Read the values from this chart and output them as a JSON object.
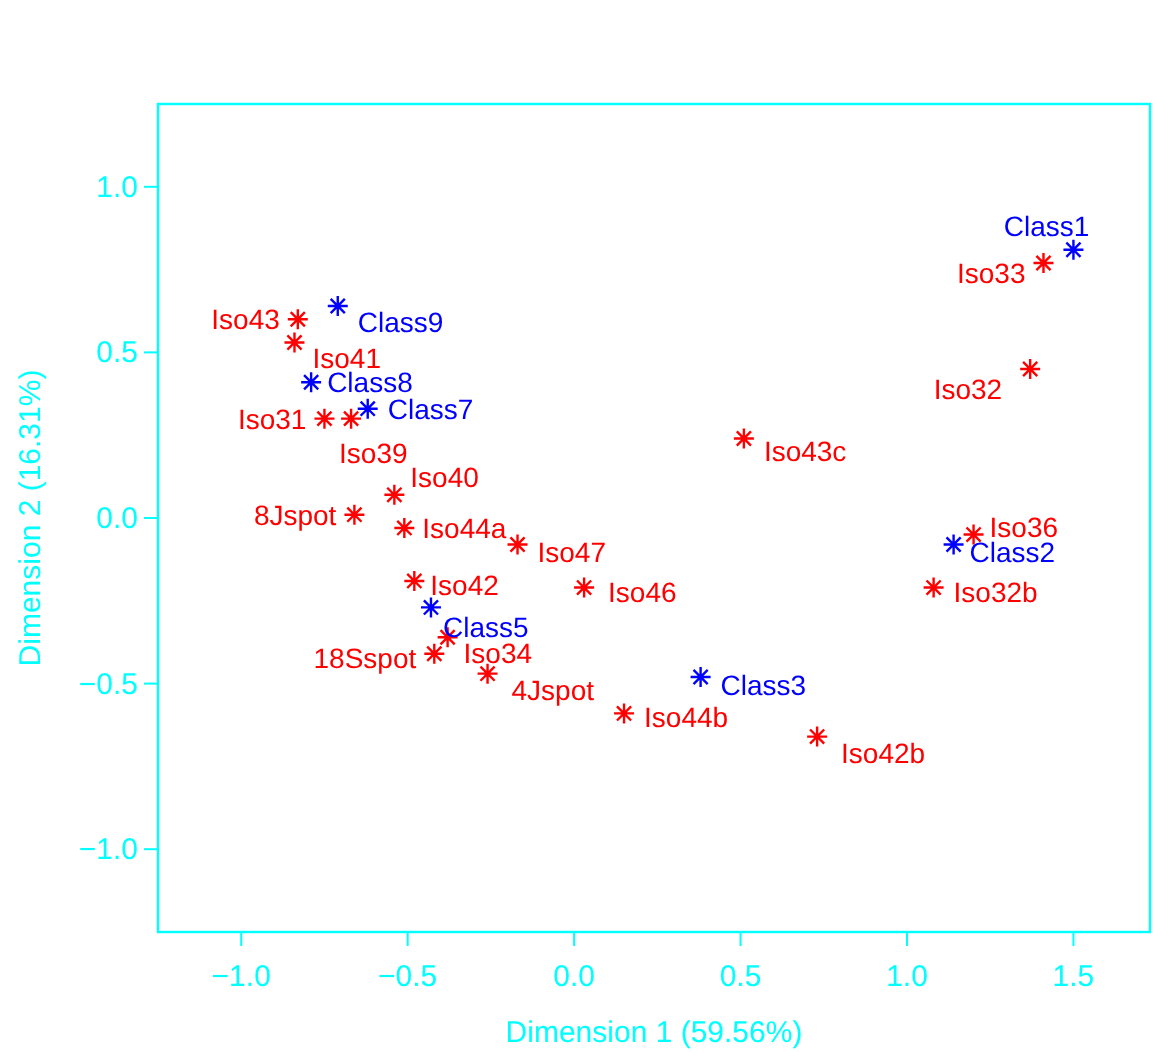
{
  "chart_data": {
    "type": "scatter",
    "xlabel": "Dimension 1 (59.56%)",
    "ylabel": "Dimension 2 (16.31%)",
    "xlim": [
      -1.25,
      1.73
    ],
    "ylim": [
      -1.25,
      1.25
    ],
    "xticks": [
      {
        "value": -1,
        "label": "−1.0"
      },
      {
        "value": -0.5,
        "label": "−0.5"
      },
      {
        "value": 0,
        "label": "0.0"
      },
      {
        "value": 0.5,
        "label": "0.5"
      },
      {
        "value": 1,
        "label": "1.0"
      },
      {
        "value": 1.5,
        "label": "1.5"
      }
    ],
    "yticks": [
      {
        "value": -1,
        "label": "−1.0"
      },
      {
        "value": -0.5,
        "label": "−0.5"
      },
      {
        "value": 0,
        "label": "0.0"
      },
      {
        "value": 0.5,
        "label": "0.5"
      },
      {
        "value": 1,
        "label": "1.0"
      }
    ],
    "grid": false,
    "marker": "cross",
    "series": [
      {
        "color": "#ff0000",
        "x": [
          1.41,
          1.37,
          0.51,
          1.2,
          1.08,
          0.73,
          0.15,
          -0.26,
          -0.38,
          -0.42,
          -0.48,
          0.03,
          -0.17,
          -0.51,
          -0.54,
          -0.66,
          -0.83,
          -0.84,
          -0.75,
          -0.67
        ],
        "values": [
          0.77,
          0.45,
          0.24,
          -0.05,
          -0.21,
          -0.66,
          -0.59,
          -0.47,
          -0.36,
          -0.41,
          -0.19,
          -0.21,
          -0.08,
          -0.03,
          0.07,
          0.01,
          0.6,
          0.53,
          0.3,
          0.3
        ]
      },
      {
        "color": "#0000ff",
        "x": [
          1.5,
          1.14,
          0.38,
          -0.43,
          -0.71,
          -0.79,
          -0.62
        ],
        "values": [
          0.81,
          -0.08,
          -0.48,
          -0.27,
          0.64,
          0.41,
          0.33
        ]
      }
    ],
    "annotations": [
      {
        "text": "Iso33",
        "x": 1.41,
        "y": 0.77
      },
      {
        "text": "Iso32",
        "x": 1.37,
        "y": 0.45
      },
      {
        "text": "Iso43c",
        "x": 0.51,
        "y": 0.24
      },
      {
        "text": "Iso36",
        "x": 1.2,
        "y": -0.05
      },
      {
        "text": "Iso32b",
        "x": 1.08,
        "y": -0.21
      },
      {
        "text": "Iso42b",
        "x": 0.73,
        "y": -0.66
      },
      {
        "text": "Iso44b",
        "x": 0.15,
        "y": -0.59
      },
      {
        "text": "4Jspot",
        "x": -0.26,
        "y": -0.47
      },
      {
        "text": "Iso34",
        "x": -0.38,
        "y": -0.36
      },
      {
        "text": "18Sspot",
        "x": -0.42,
        "y": -0.41
      },
      {
        "text": "Iso42",
        "x": -0.48,
        "y": -0.19
      },
      {
        "text": "Iso46",
        "x": 0.03,
        "y": -0.21
      },
      {
        "text": "Iso47",
        "x": -0.17,
        "y": -0.08
      },
      {
        "text": "Iso44a",
        "x": -0.51,
        "y": -0.03
      },
      {
        "text": "Iso40",
        "x": -0.54,
        "y": 0.07
      },
      {
        "text": "8Jspot",
        "x": -0.66,
        "y": 0.01
      },
      {
        "text": "Iso43",
        "x": -0.83,
        "y": 0.6
      },
      {
        "text": "Iso41",
        "x": -0.84,
        "y": 0.53
      },
      {
        "text": "Iso31",
        "x": -0.75,
        "y": 0.3
      },
      {
        "text": "Iso39",
        "x": -0.67,
        "y": 0.3
      },
      {
        "text": "Class1",
        "x": 1.5,
        "y": 0.81
      },
      {
        "text": "Class2",
        "x": 1.14,
        "y": -0.08
      },
      {
        "text": "Class3",
        "x": 0.38,
        "y": -0.48
      },
      {
        "text": "Class5",
        "x": -0.43,
        "y": -0.27
      },
      {
        "text": "Class9",
        "x": -0.71,
        "y": 0.64
      },
      {
        "text": "Class8",
        "x": -0.79,
        "y": 0.41
      },
      {
        "text": "Class7",
        "x": -0.62,
        "y": 0.33
      }
    ]
  }
}
